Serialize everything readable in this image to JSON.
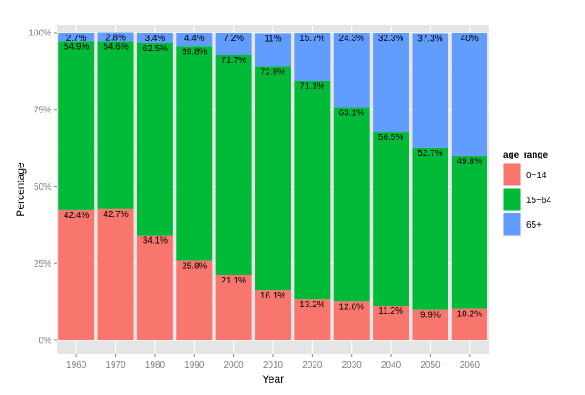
{
  "chart_data": {
    "type": "bar",
    "stacked": true,
    "xlabel": "Year",
    "ylabel": "Percentage",
    "ylim": [
      0,
      100
    ],
    "y_ticks": [
      "0%",
      "25%",
      "50%",
      "75%",
      "100%"
    ],
    "categories": [
      "1960",
      "1970",
      "1980",
      "1990",
      "2000",
      "2010",
      "2020",
      "2030",
      "2040",
      "2050",
      "2060"
    ],
    "series": [
      {
        "name": "0~14",
        "color": "#F8766D",
        "values": [
          42.4,
          42.7,
          34.1,
          25.8,
          21.1,
          16.1,
          13.2,
          12.6,
          11.2,
          9.9,
          10.2
        ],
        "labels": [
          "42.4%",
          "42.7%",
          "34.1%",
          "25.8%",
          "21.1%",
          "16.1%",
          "13.2%",
          "12.6%",
          "11.2%",
          "9.9%",
          "10.2%"
        ]
      },
      {
        "name": "15~64",
        "color": "#00BA38",
        "values": [
          54.9,
          54.6,
          62.5,
          69.8,
          71.7,
          72.8,
          71.1,
          63.1,
          56.5,
          52.7,
          49.8
        ],
        "labels": [
          "54.9%",
          "54.6%",
          "62.5%",
          "69.8%",
          "71.7%",
          "72.8%",
          "71.1%",
          "63.1%",
          "56.5%",
          "52.7%",
          "49.8%"
        ]
      },
      {
        "name": "65+",
        "color": "#619CFF",
        "values": [
          2.7,
          2.8,
          3.4,
          4.4,
          7.2,
          11,
          15.7,
          24.3,
          32.3,
          37.3,
          40
        ],
        "labels": [
          "2.7%",
          "2.8%",
          "3.4%",
          "4.4%",
          "7.2%",
          "11%",
          "15.7%",
          "24.3%",
          "32.3%",
          "37.3%",
          "40%"
        ]
      }
    ],
    "legend": {
      "title": "age_range",
      "position": "right"
    },
    "panel_background": "#E5E5E5",
    "grid": true
  }
}
